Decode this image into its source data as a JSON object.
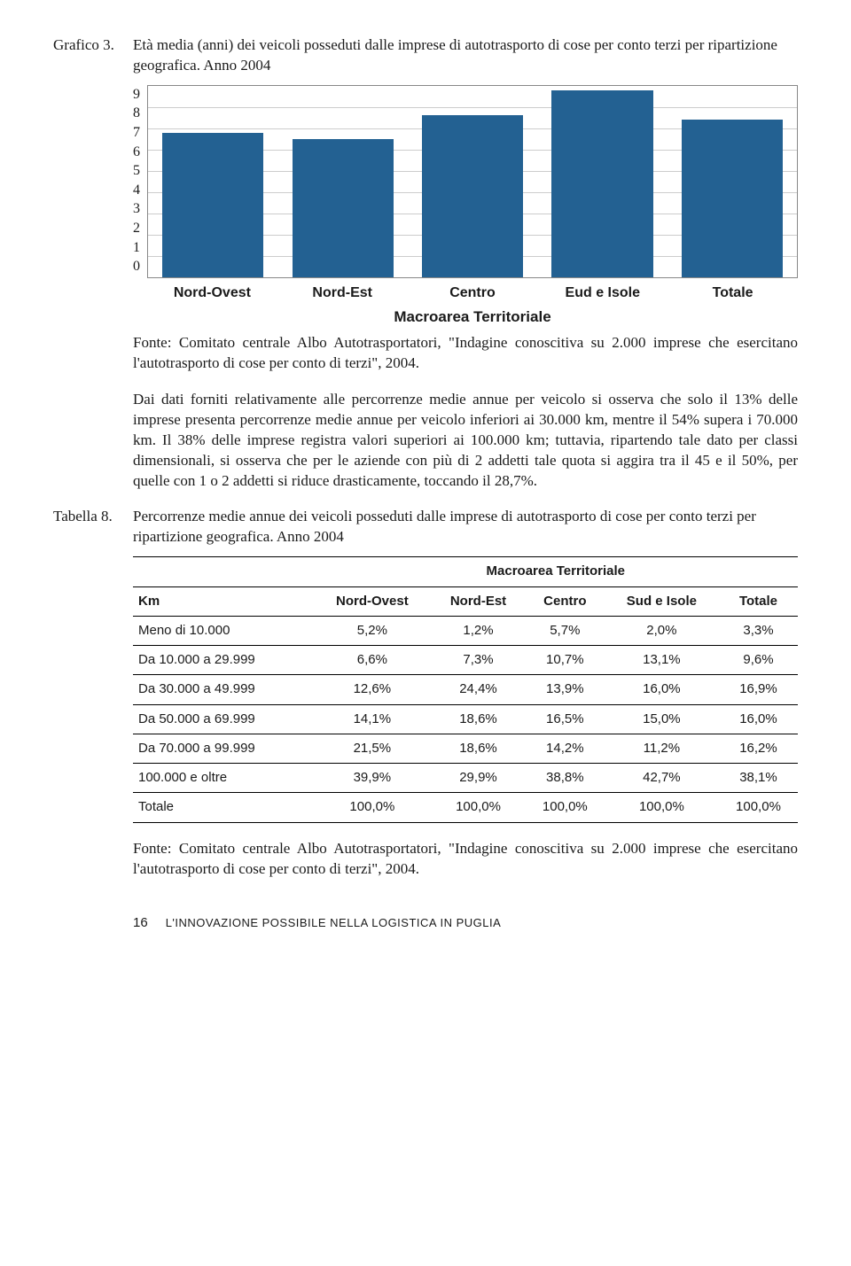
{
  "grafico3": {
    "label": "Grafico 3.",
    "title": "Età media (anni) dei veicoli posseduti dalle imprese di autotrasporto di cose per conto terzi per ripartizione geografica. Anno 2004",
    "chart": {
      "type": "bar",
      "ymin": 0,
      "ymax": 9,
      "ytick_step": 1,
      "yticks": [
        "9",
        "8",
        "7",
        "6",
        "5",
        "4",
        "3",
        "2",
        "1",
        "0"
      ],
      "categories": [
        "Nord-Ovest",
        "Nord-Est",
        "Centro",
        "Eud e Isole",
        "Totale"
      ],
      "values": [
        6.8,
        6.5,
        7.6,
        8.8,
        7.4
      ],
      "bar_color": "#236192",
      "grid_color": "#cccccc",
      "border_color": "#888888",
      "x_axis_title": "Macroarea Territoriale"
    },
    "source": "Fonte: Comitato centrale Albo Autotrasportatori, \"Indagine conoscitiva su 2.000 imprese che esercitano l'autotrasporto di cose per conto di terzi\", 2004.",
    "paragraph": "Dai dati forniti relativamente alle percorrenze medie annue per veicolo si osserva che solo il 13% delle imprese presenta percorrenze medie annue per veicolo inferiori ai 30.000 km, mentre il 54% supera i 70.000 km. Il 38% delle imprese registra valori superiori ai 100.000 km; tuttavia, ripartendo tale dato per classi dimensionali, si osserva che per le aziende con più di 2 addetti tale quota si aggira tra il 45 e il 50%, per quelle con 1 o 2 addetti si riduce drasticamente, toccando il 28,7%."
  },
  "tabella8": {
    "label": "Tabella 8.",
    "title": "Percorrenze medie annue dei veicoli posseduti dalle imprese di autotrasporto di cose per conto terzi per ripartizione geografica. Anno 2004",
    "table": {
      "super_header": "Macroarea Territoriale",
      "row_header": "Km",
      "columns": [
        "Nord-Ovest",
        "Nord-Est",
        "Centro",
        "Sud e Isole",
        "Totale"
      ],
      "rows": [
        {
          "label": "Meno di 10.000",
          "vals": [
            "5,2%",
            "1,2%",
            "5,7%",
            "2,0%",
            "3,3%"
          ]
        },
        {
          "label": "Da 10.000 a 29.999",
          "vals": [
            "6,6%",
            "7,3%",
            "10,7%",
            "13,1%",
            "9,6%"
          ]
        },
        {
          "label": "Da 30.000 a 49.999",
          "vals": [
            "12,6%",
            "24,4%",
            "13,9%",
            "16,0%",
            "16,9%"
          ]
        },
        {
          "label": "Da 50.000 a 69.999",
          "vals": [
            "14,1%",
            "18,6%",
            "16,5%",
            "15,0%",
            "16,0%"
          ]
        },
        {
          "label": "Da 70.000 a 99.999",
          "vals": [
            "21,5%",
            "18,6%",
            "14,2%",
            "11,2%",
            "16,2%"
          ]
        },
        {
          "label": "100.000 e oltre",
          "vals": [
            "39,9%",
            "29,9%",
            "38,8%",
            "42,7%",
            "38,1%"
          ]
        },
        {
          "label": "Totale",
          "vals": [
            "100,0%",
            "100,0%",
            "100,0%",
            "100,0%",
            "100,0%"
          ]
        }
      ]
    },
    "source": "Fonte: Comitato centrale Albo Autotrasportatori, \"Indagine conoscitiva su 2.000 imprese che esercitano l'autotrasporto di cose per conto di terzi\", 2004."
  },
  "footer": {
    "page": "16",
    "title": "L'INNOVAZIONE POSSIBILE NELLA LOGISTICA IN PUGLIA"
  }
}
